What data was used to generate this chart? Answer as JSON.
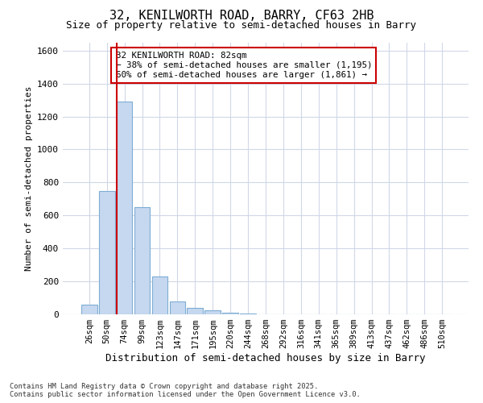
{
  "title_line1": "32, KENILWORTH ROAD, BARRY, CF63 2HB",
  "title_line2": "Size of property relative to semi-detached houses in Barry",
  "xlabel": "Distribution of semi-detached houses by size in Barry",
  "ylabel": "Number of semi-detached properties",
  "categories": [
    "26sqm",
    "50sqm",
    "74sqm",
    "99sqm",
    "123sqm",
    "147sqm",
    "171sqm",
    "195sqm",
    "220sqm",
    "244sqm",
    "268sqm",
    "292sqm",
    "316sqm",
    "341sqm",
    "365sqm",
    "389sqm",
    "413sqm",
    "437sqm",
    "462sqm",
    "486sqm",
    "510sqm"
  ],
  "values": [
    60,
    750,
    1290,
    650,
    230,
    80,
    40,
    25,
    10,
    5,
    2,
    0,
    0,
    0,
    0,
    0,
    0,
    0,
    0,
    0,
    0
  ],
  "bar_color": "#c5d8f0",
  "bar_edge_color": "#7eadd4",
  "vline_color": "#cc0000",
  "annotation_title": "32 KENILWORTH ROAD: 82sqm",
  "annotation_line2": "← 38% of semi-detached houses are smaller (1,195)",
  "annotation_line3": "60% of semi-detached houses are larger (1,861) →",
  "annotation_box_color": "#cc0000",
  "ylim": [
    0,
    1650
  ],
  "yticks": [
    0,
    200,
    400,
    600,
    800,
    1000,
    1200,
    1400,
    1600
  ],
  "footer_line1": "Contains HM Land Registry data © Crown copyright and database right 2025.",
  "footer_line2": "Contains public sector information licensed under the Open Government Licence v3.0.",
  "bg_color": "#ffffff",
  "grid_color": "#d0d8e8"
}
